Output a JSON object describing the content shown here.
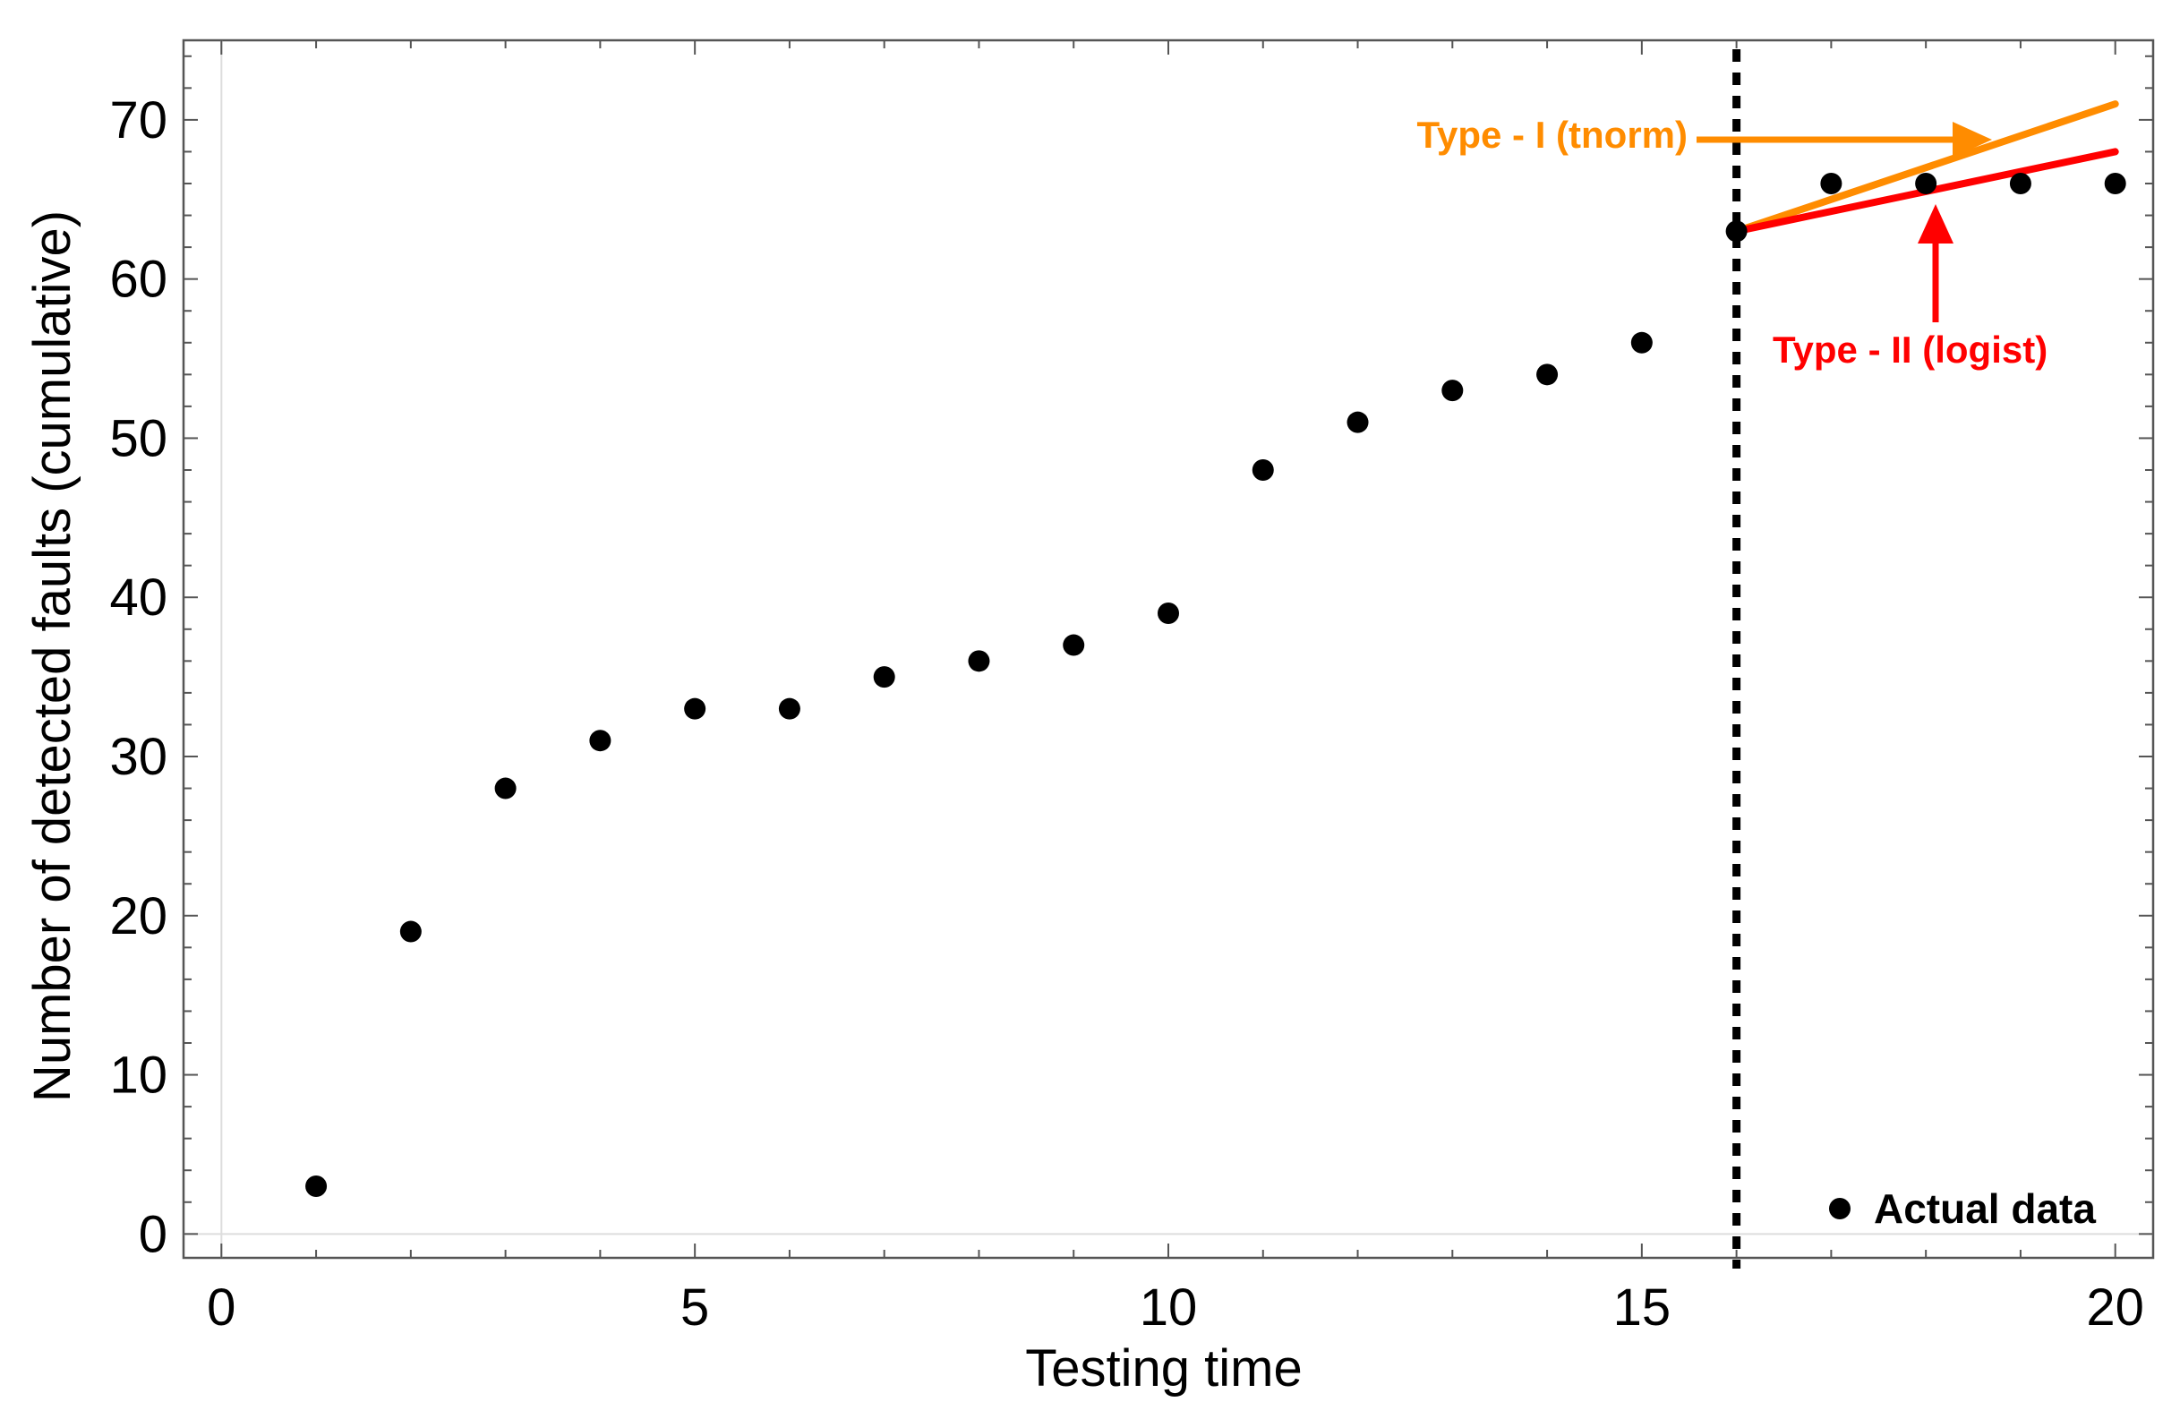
{
  "chart_data": {
    "type": "scatter",
    "xlabel": "Testing time",
    "ylabel": "Number of detected faults (cumulative)",
    "xlim": [
      -0.4,
      20.4
    ],
    "ylim": [
      -1.5,
      75
    ],
    "xticks": [
      0,
      5,
      10,
      15,
      20
    ],
    "yticks": [
      0,
      10,
      20,
      30,
      40,
      50,
      60,
      70
    ],
    "grid": false,
    "legend_position": "bottom-right",
    "series": [
      {
        "name": "Actual data",
        "type": "scatter",
        "color": "#000000",
        "x": [
          1,
          2,
          3,
          4,
          5,
          6,
          7,
          8,
          9,
          10,
          11,
          12,
          13,
          14,
          15,
          16,
          17,
          18,
          19,
          20
        ],
        "y": [
          3,
          19,
          28,
          31,
          33,
          33,
          35,
          36,
          37,
          39,
          48,
          51,
          53,
          54,
          56,
          63,
          66,
          66,
          66,
          66
        ]
      },
      {
        "type": "line",
        "color": "#FF8C00",
        "x": [
          16,
          20
        ],
        "y": [
          63,
          71
        ]
      },
      {
        "type": "line",
        "color": "#FF0000",
        "x": [
          16,
          20
        ],
        "y": [
          63,
          68
        ]
      }
    ],
    "vline": {
      "x": 16,
      "style": "dotted",
      "color": "#000000"
    },
    "annotations": [
      {
        "text": "Type - I (tnorm)",
        "color": "#FF8C00",
        "points_to_series": 1
      },
      {
        "text": "Type - II (logist)",
        "color": "#FF0000",
        "points_to_series": 2
      }
    ]
  }
}
